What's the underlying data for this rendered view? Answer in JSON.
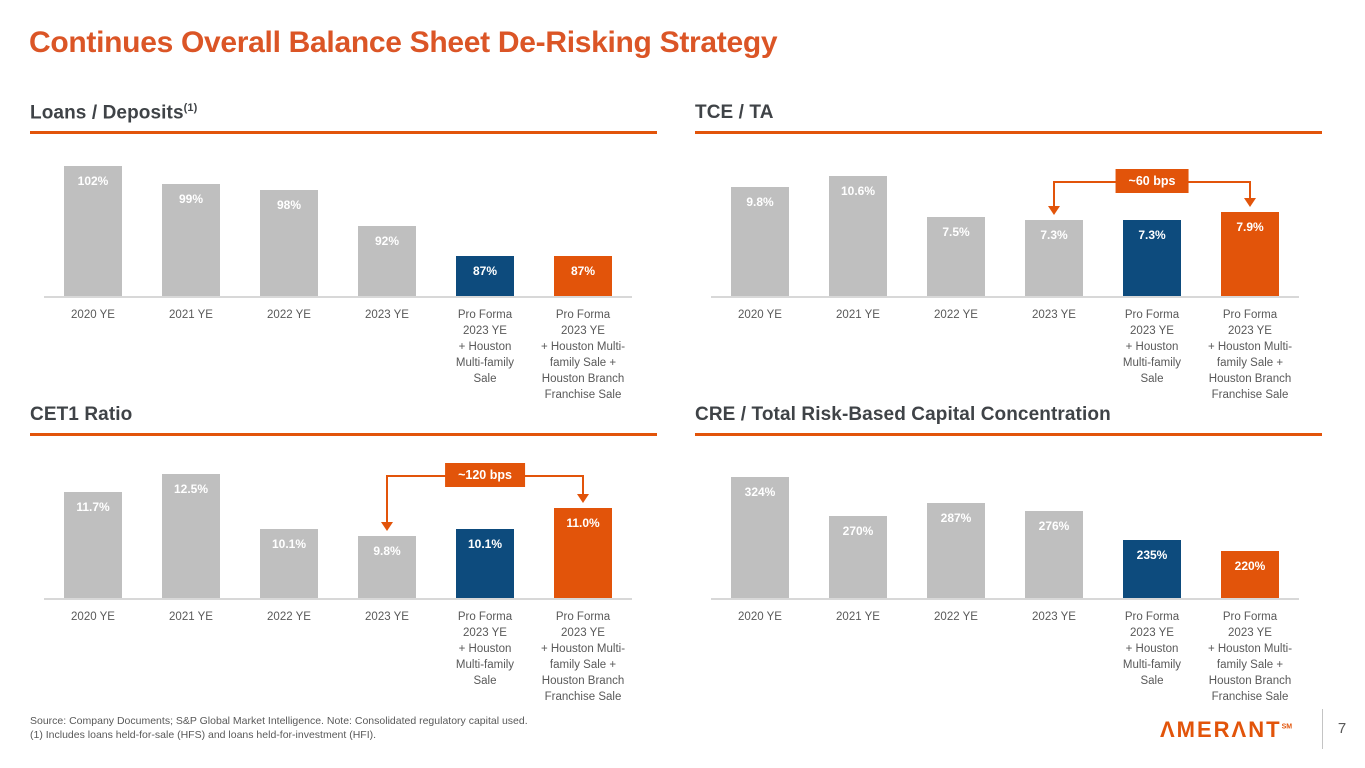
{
  "slide": {
    "title": "Continues Overall Balance Sheet De-Risking Strategy",
    "page_number": "7",
    "logo_text": "ΛMERΛNT",
    "logo_sm": "SM",
    "footnotes": [
      "Source: Company Documents; S&P Global Market Intelligence. Note: Consolidated regulatory capital used.",
      "(1) Includes loans held-for-sale (HFS) and loans held-for-investment (HFI)."
    ]
  },
  "colors": {
    "title_orange": "#DB5526",
    "accent_orange": "#E2540A",
    "navy": "#0D4B7D",
    "bar_gray": "#BFBFBF",
    "axis_gray": "#D8D8D8",
    "text_gray": "#595959",
    "header_gray": "#3F4347"
  },
  "chart_style": {
    "bar_colors": [
      "gray",
      "gray",
      "gray",
      "gray",
      "navy",
      "orange"
    ],
    "legend_position": "none",
    "grid": false
  },
  "chart_data": [
    {
      "type": "bar",
      "title": "Loans / Deposits",
      "title_sup": "(1)",
      "categories": [
        "2020 YE",
        "2021 YE",
        "2022 YE",
        "2023 YE",
        "Pro Forma\n2023 YE\n+ Houston\nMulti-family\nSale",
        "Pro Forma\n2023 YE\n+ Houston Multi-\nfamily Sale +\nHouston Branch\nFranchise Sale"
      ],
      "values": [
        102,
        99,
        98,
        92,
        87,
        87
      ],
      "value_labels": [
        "102%",
        "99%",
        "98%",
        "92%",
        "87%",
        "87%"
      ],
      "ylim": [
        80.3,
        103.6
      ],
      "annotation": null
    },
    {
      "type": "bar",
      "title": "TCE / TA",
      "title_sup": "",
      "categories": [
        "2020 YE",
        "2021 YE",
        "2022 YE",
        "2023 YE",
        "Pro Forma\n2023 YE\n+ Houston\nMulti-family\nSale",
        "Pro Forma\n2023 YE\n+ Houston Multi-\nfamily Sale +\nHouston Branch\nFranchise Sale"
      ],
      "values": [
        9.8,
        10.6,
        7.5,
        7.3,
        7.3,
        7.9
      ],
      "value_labels": [
        "9.8%",
        "10.6%",
        "7.5%",
        "7.3%",
        "7.3%",
        "7.9%"
      ],
      "ylim": [
        1.6,
        12.1
      ],
      "annotation": {
        "label": "~60 bps",
        "from_index": 3,
        "to_index": 5,
        "line_y": 31
      }
    },
    {
      "type": "bar",
      "title": "CET1 Ratio",
      "title_sup": "",
      "categories": [
        "2020 YE",
        "2021 YE",
        "2022 YE",
        "2023 YE",
        "Pro Forma\n2023 YE\n+ Houston\nMulti-family\nSale",
        "Pro Forma\n2023 YE\n+ Houston Multi-\nfamily Sale +\nHouston Branch\nFranchise Sale"
      ],
      "values": [
        11.7,
        12.5,
        10.1,
        9.8,
        10.1,
        11.0
      ],
      "value_labels": [
        "11.7%",
        "12.5%",
        "10.1%",
        "9.8%",
        "10.1%",
        "11.0%"
      ],
      "ylim": [
        7.1,
        13.2
      ],
      "annotation": {
        "label": "~120 bps",
        "from_index": 3,
        "to_index": 5,
        "line_y": 23
      }
    },
    {
      "type": "bar",
      "title": "CRE / Total Risk-Based Capital Concentration",
      "title_sup": "",
      "categories": [
        "2020 YE",
        "2021 YE",
        "2022 YE",
        "2023 YE",
        "Pro Forma\n2023 YE\n+ Houston\nMulti-family\nSale",
        "Pro Forma\n2023 YE\n+ Houston Multi-\nfamily Sale +\nHouston Branch\nFranchise Sale"
      ],
      "values": [
        324,
        270,
        287,
        276,
        235,
        220
      ],
      "value_labels": [
        "324%",
        "270%",
        "287%",
        "276%",
        "235%",
        "220%"
      ],
      "ylim": [
        154,
        351
      ],
      "annotation": null
    }
  ]
}
